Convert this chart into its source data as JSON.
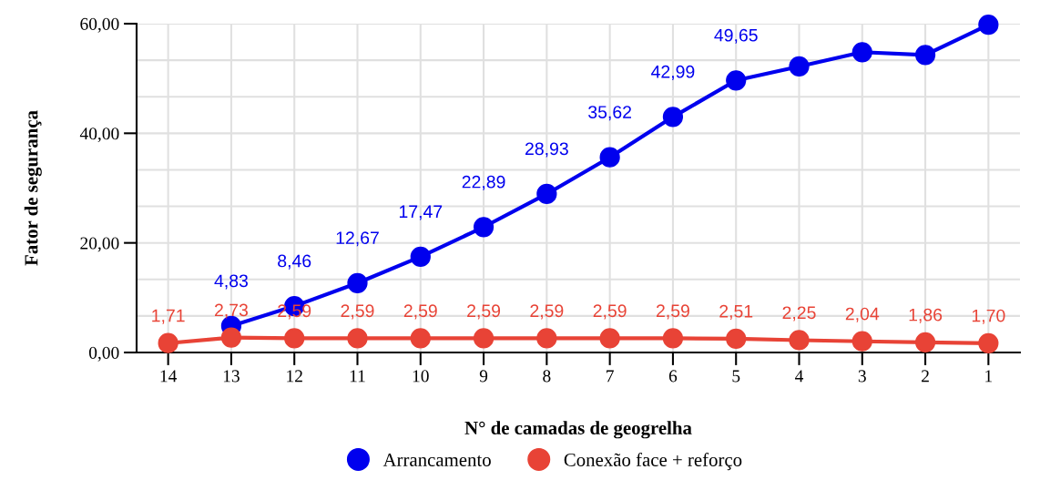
{
  "chart_data": {
    "type": "line",
    "xlabel": "N° de camadas de geogrelha",
    "ylabel": "Fator de segurança",
    "categories": [
      "14",
      "13",
      "12",
      "11",
      "10",
      "9",
      "8",
      "7",
      "6",
      "5",
      "4",
      "3",
      "2",
      "1"
    ],
    "series": [
      {
        "name": "Arrancamento",
        "color": "#0000ee",
        "values": [
          null,
          4.83,
          8.46,
          12.67,
          17.47,
          22.89,
          28.93,
          35.62,
          42.99,
          49.65,
          52.2,
          54.8,
          54.3,
          59.8
        ],
        "value_labels": [
          null,
          "4,83",
          "8,46",
          "12,67",
          "17,47",
          "22,89",
          "28,93",
          "35,62",
          "42,99",
          "49,65",
          null,
          null,
          null,
          null
        ]
      },
      {
        "name": "Conexão face + reforço",
        "color": "#e84336",
        "values": [
          1.71,
          2.73,
          2.59,
          2.59,
          2.59,
          2.59,
          2.59,
          2.59,
          2.59,
          2.51,
          2.25,
          2.04,
          1.86,
          1.7
        ],
        "value_labels": [
          "1,71",
          "2,73",
          "2,59",
          "2,59",
          "2,59",
          "2,59",
          "2,59",
          "2,59",
          "2,59",
          "2,51",
          "2,25",
          "2,04",
          "1,86",
          "1,70"
        ]
      }
    ],
    "ylim": [
      0,
      60
    ],
    "yticks": [
      {
        "value": 0,
        "label": "0,00"
      },
      {
        "value": 6.67,
        "label": null
      },
      {
        "value": 13.33,
        "label": null
      },
      {
        "value": 20,
        "label": "20,00"
      },
      {
        "value": 26.67,
        "label": null
      },
      {
        "value": 33.33,
        "label": null
      },
      {
        "value": 40,
        "label": "40,00"
      },
      {
        "value": 46.67,
        "label": null
      },
      {
        "value": 53.33,
        "label": null
      },
      {
        "value": 60,
        "label": "60,00"
      }
    ],
    "grid": true,
    "legend": "bottom",
    "marker": "circle",
    "line_style": "solid"
  }
}
